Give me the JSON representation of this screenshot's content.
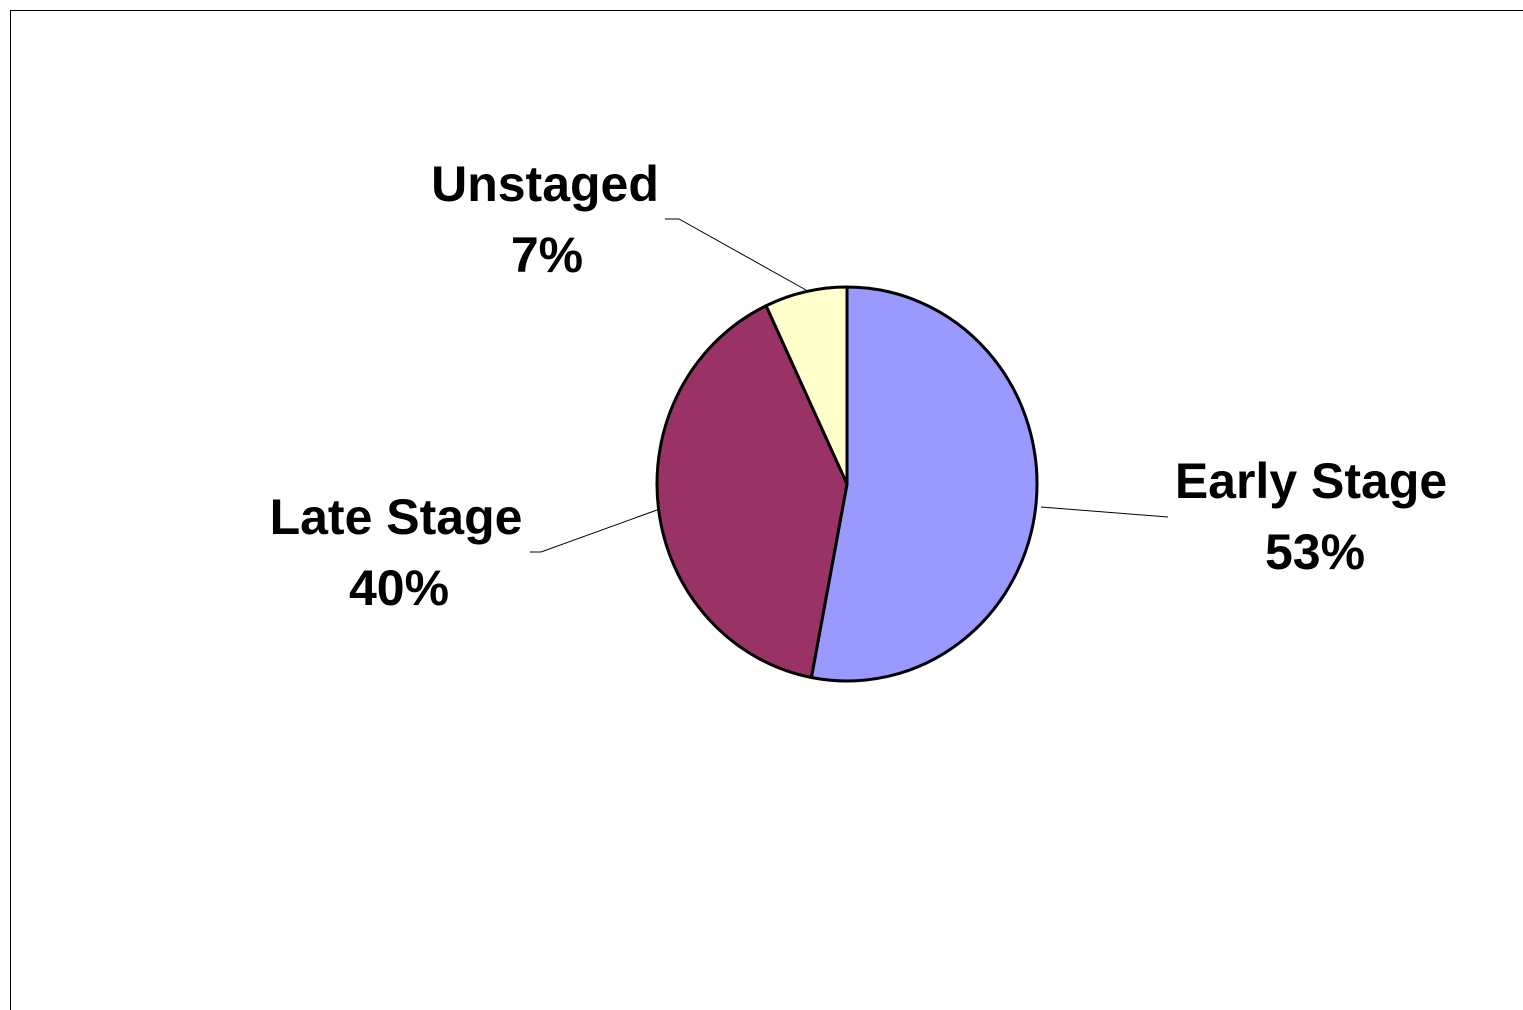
{
  "chart_data": {
    "type": "pie",
    "slices": [
      {
        "label": "Early Stage",
        "percent_label": "53%",
        "value": 53,
        "color": "#9999ff"
      },
      {
        "label": "Late Stage",
        "percent_label": "40%",
        "value": 40,
        "color": "#993366"
      },
      {
        "label": "Unstaged",
        "percent_label": "7%",
        "value": 7,
        "color": "#ffffcc"
      }
    ],
    "start_angle_deg": 0,
    "direction": "clockwise",
    "outline_color": "#000000",
    "legend": "none"
  }
}
